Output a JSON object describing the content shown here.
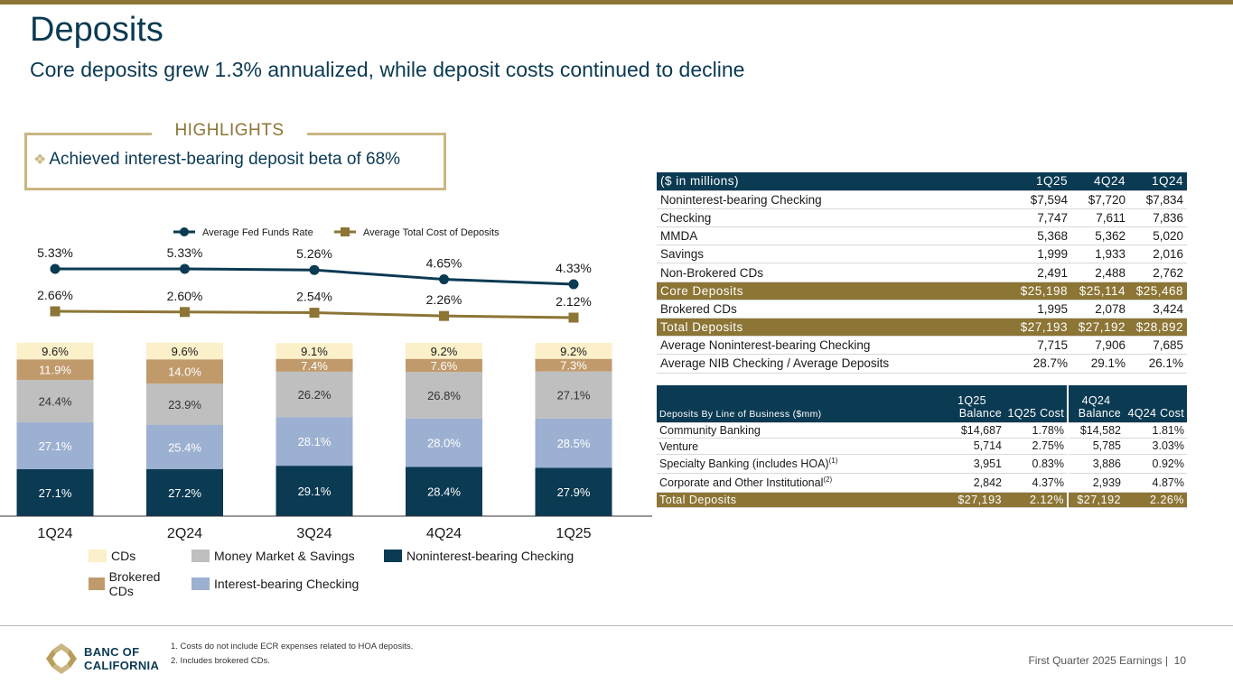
{
  "header": {
    "title": "Deposits",
    "subtitle": "Core deposits grew 1.3% annualized, while deposit costs continued to decline"
  },
  "highlights": {
    "label": "HIGHLIGHTS",
    "items": [
      "Achieved interest-bearing deposit beta of 68%"
    ]
  },
  "colors": {
    "navy": "#0b3a53",
    "gold": "#8c7535",
    "cds": "#fbf0c9",
    "brokered": "#c19a6b",
    "mm_savings": "#bfbfbf",
    "ib_checking": "#9cb0d2",
    "nib_checking": "#0b3a53"
  },
  "chart_data": [
    {
      "type": "line",
      "categories": [
        "1Q24",
        "2Q24",
        "3Q24",
        "4Q24",
        "1Q25"
      ],
      "series": [
        {
          "name": "Average Fed Funds Rate",
          "values": [
            5.33,
            5.33,
            5.26,
            4.65,
            4.33
          ],
          "labels": [
            "5.33%",
            "5.33%",
            "5.26%",
            "4.65%",
            "4.33%"
          ]
        },
        {
          "name": "Average Total Cost of Deposits",
          "values": [
            2.66,
            2.6,
            2.54,
            2.26,
            2.12
          ],
          "labels": [
            "2.66%",
            "2.60%",
            "2.54%",
            "2.26%",
            "2.12%"
          ]
        }
      ]
    },
    {
      "type": "bar",
      "stacked": true,
      "categories": [
        "1Q24",
        "2Q24",
        "3Q24",
        "4Q24",
        "1Q25"
      ],
      "series": [
        {
          "name": "Noninterest-bearing Checking",
          "values": [
            27.1,
            27.2,
            29.1,
            28.4,
            27.9
          ],
          "labels": [
            "27.1%",
            "27.2%",
            "29.1%",
            "28.4%",
            "27.9%"
          ]
        },
        {
          "name": "Interest-bearing Checking",
          "values": [
            27.1,
            25.4,
            28.1,
            28.0,
            28.5
          ],
          "labels": [
            "27.1%",
            "25.4%",
            "28.1%",
            "28.0%",
            "28.5%"
          ]
        },
        {
          "name": "Money Market & Savings",
          "values": [
            24.4,
            23.9,
            26.2,
            26.8,
            27.1
          ],
          "labels": [
            "24.4%",
            "23.9%",
            "26.2%",
            "26.8%",
            "27.1%"
          ]
        },
        {
          "name": "Brokered CDs",
          "values": [
            11.9,
            14.0,
            7.4,
            7.6,
            7.3
          ],
          "labels": [
            "11.9%",
            "14.0%",
            "7.4%",
            "7.6%",
            "7.3%"
          ]
        },
        {
          "name": "CDs",
          "values": [
            9.6,
            9.6,
            9.1,
            9.2,
            9.2
          ],
          "labels": [
            "9.6%",
            "9.6%",
            "9.1%",
            "9.2%",
            "9.2%"
          ]
        }
      ]
    }
  ],
  "legend": {
    "row1": [
      "CDs",
      "Money Market & Savings",
      "Noninterest-bearing Checking"
    ],
    "row2": [
      "Brokered CDs",
      "Interest-bearing Checking"
    ]
  },
  "deposit_table": {
    "header": [
      "($ in millions)",
      "1Q25",
      "4Q24",
      "1Q24"
    ],
    "rows": [
      [
        "Noninterest-bearing Checking",
        "$7,594",
        "$7,720",
        "$7,834"
      ],
      [
        "Checking",
        "7,747",
        "7,611",
        "7,836"
      ],
      [
        "MMDA",
        "5,368",
        "5,362",
        "5,020"
      ],
      [
        "Savings",
        "1,999",
        "1,933",
        "2,016"
      ],
      [
        "Non-Brokered CDs",
        "2,491",
        "2,488",
        "2,762"
      ],
      [
        "Core Deposits",
        "$25,198",
        "$25,114",
        "$25,468"
      ],
      [
        "Brokered CDs",
        "1,995",
        "2,078",
        "3,424"
      ],
      [
        "Total Deposits",
        "$27,193",
        "$27,192",
        "$28,892"
      ],
      [
        "Average Noninterest-bearing Checking",
        "7,715",
        "7,906",
        "7,685"
      ],
      [
        "Average NIB Checking / Average Deposits",
        "28.7%",
        "29.1%",
        "26.1%"
      ]
    ]
  },
  "lob_table": {
    "header": {
      "label": "Deposits By Line of Business ($mm)",
      "c1a": "1Q25",
      "c1b": "Balance",
      "c2": "1Q25 Cost",
      "c3a": "4Q24",
      "c3b": "Balance",
      "c4": "4Q24 Cost"
    },
    "rows": [
      {
        "name": "Community Banking",
        "sup": "",
        "v": [
          "$14,687",
          "1.78%",
          "$14,582",
          "1.81%"
        ]
      },
      {
        "name": "Venture",
        "sup": "",
        "v": [
          "5,714",
          "2.75%",
          "5,785",
          "3.03%"
        ]
      },
      {
        "name": "Specialty Banking (includes HOA)",
        "sup": "(1)",
        "v": [
          "3,951",
          "0.83%",
          "3,886",
          "0.92%"
        ]
      },
      {
        "name": "Corporate and Other Institutional",
        "sup": "(2)",
        "v": [
          "2,842",
          "4.37%",
          "2,939",
          "4.87%"
        ]
      }
    ],
    "total": {
      "name": "Total Deposits",
      "v": [
        "$27,193",
        "2.12%",
        "$27,192",
        "2.26%"
      ]
    }
  },
  "footer": {
    "logo_line1": "BANC OF",
    "logo_line2": "CALIFORNIA",
    "notes": [
      "1.  Costs do not include ECR expenses related to HOA deposits.",
      "2.  Includes brokered CDs."
    ],
    "page_label": "First Quarter 2025 Earnings |",
    "page_number": "10"
  }
}
